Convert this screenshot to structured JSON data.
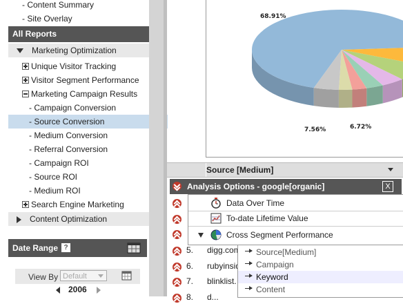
{
  "nav": {
    "top_items": [
      "- Content Summary",
      "- Site Overlay"
    ],
    "all_reports": "All Reports",
    "marketing_optimization": "Marketing Optimization",
    "unique_visitor": "Unique Visitor Tracking",
    "visitor_segment": "Visitor Segment Performance",
    "campaign_results": "Marketing Campaign Results",
    "campaign_items": [
      "- Campaign Conversion",
      "- Source Conversion",
      "- Medium Conversion",
      "- Referral Conversion",
      "- Campaign ROI",
      "- Source ROI",
      "- Medium ROI"
    ],
    "search_engine": "Search Engine Marketing",
    "content_optimization": "Content Optimization"
  },
  "date_range": {
    "title": "Date Range",
    "help": "?",
    "view_by_label": "View By",
    "view_by_value": "Default",
    "year": "2006"
  },
  "chart": {
    "label_big": "68.91%",
    "label_a": "7.56%",
    "label_b": "6.72%"
  },
  "chart_data": {
    "type": "pie",
    "slices": [
      {
        "label": "68.91%",
        "value": 68.91,
        "color": "#93b9d9"
      },
      {
        "label": "7.56%",
        "value": 7.56,
        "color": "#fdb93c"
      },
      {
        "label": "6.72%",
        "value": 6.72,
        "color": "#b5d27b"
      },
      {
        "label": "",
        "value": 4.2,
        "color": "#e4b8e8"
      },
      {
        "label": "",
        "value": 3.1,
        "color": "#9ad0b6"
      },
      {
        "label": "",
        "value": 2.6,
        "color": "#f3a09a"
      },
      {
        "label": "",
        "value": 2.4,
        "color": "#dcdcaa"
      },
      {
        "label": "",
        "value": 4.5,
        "color": "#c8c8c8"
      }
    ]
  },
  "table": {
    "column_header": "Source [Medium]",
    "rows": [
      {
        "num": "5.",
        "text": "digg.com"
      },
      {
        "num": "6.",
        "text": "rubyinside"
      },
      {
        "num": "7.",
        "text": "blinklist."
      },
      {
        "num": "8.",
        "text": "d..."
      }
    ]
  },
  "analysis": {
    "title": "Analysis Options - google[organic]",
    "close": "X",
    "items": [
      "Data Over Time",
      "To-date Lifetime Value",
      "Cross Segment Performance"
    ],
    "submenu": [
      "Source[Medium]",
      "Campaign",
      "Keyword",
      "Content"
    ]
  },
  "colors": {
    "header_bg": "#555555",
    "selected_bg": "#c9dced",
    "row_button": "#c0392b"
  }
}
